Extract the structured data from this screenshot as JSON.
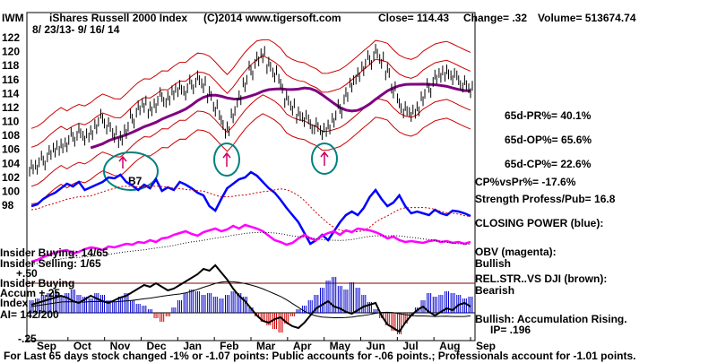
{
  "header": {
    "symbol": "IWM",
    "name": "iShares Russell 2000 Index",
    "copyright": "(C)2014 www.tigersoft.com",
    "close": "Close= 114.43",
    "change": "Change= .32",
    "volume": "Volume= 513674.74",
    "date_range": "8/ 23/13- 9/ 16/ 14"
  },
  "indicators": {
    "pr": "65d-PR%= 40.1%",
    "op": "65d-OP%= 65.6%",
    "cp": "65d-CP%= 22.6%",
    "cpvspr": "CP%vsPr%= -17.6%",
    "strength": "Strength Profess/Pub= 16.8",
    "closing_power": "CLOSING POWER (blue):",
    "obv": "OBV (magenta):",
    "obv_state": "Bullish",
    "relstr": "REL.STR..VS DJI (brown):",
    "relstr_state": "Bearish",
    "accum": "Bullish: Accumulation Rising.",
    "ip": "IP=  .196"
  },
  "left_labels": {
    "insider_buying": "Insider Buying: 14/65",
    "insider_selling": "Insider Selling: 1/65",
    "plus50": "+.50",
    "insider_buying2": "Insider Buying",
    "accum": "Accum  +.25",
    "index": "Index",
    "ai": "AI= 142/200",
    "minus25": "-.25",
    "b7": "B7"
  },
  "footer": "For Last 65 days stock changed -1% or -1.07 points:  Public accounts for -.06 points.;  Professionals account for -1.01 points.",
  "colors": {
    "price": "#000000",
    "ma": "#800080",
    "bands": "#cc0000",
    "closing_power": "#0000ff",
    "obv": "#ff00ff",
    "relstr": "#000000",
    "accum_pos": "#0000cc",
    "accum_neg": "#cc0000",
    "circles": "#008080"
  },
  "chart_data": {
    "type": "line",
    "title": "iShares Russell 2000 Index",
    "x_ticks": [
      "Sep",
      "Oct",
      "Nov",
      "Dec",
      "Jan",
      "Feb",
      "Mar",
      "Apr",
      "May",
      "Jun",
      "Jul",
      "Aug",
      "Sep"
    ],
    "ylim": [
      98,
      122
    ],
    "y_ticks": [
      98,
      100,
      102,
      104,
      106,
      108,
      110,
      112,
      114,
      116,
      118,
      120,
      122
    ],
    "price": [
      103.5,
      103.8,
      104.4,
      105.2,
      105.9,
      106.5,
      107.0,
      107.8,
      108.3,
      107.6,
      108.4,
      109.6,
      110.4,
      109.2,
      108.0,
      107.6,
      108.9,
      110.4,
      111.6,
      112.3,
      111.8,
      112.6,
      113.5,
      113.0,
      114.1,
      114.9,
      114.4,
      115.3,
      115.9,
      115.1,
      114.0,
      112.1,
      110.2,
      108.6,
      110.8,
      113.4,
      115.6,
      117.3,
      118.6,
      119.4,
      118.2,
      117.0,
      115.4,
      113.0,
      111.9,
      111.1,
      110.6,
      109.6,
      109.2,
      108.4,
      109.2,
      110.5,
      111.8,
      113.5,
      115.2,
      116.7,
      117.9,
      118.8,
      119.7,
      118.6,
      117.3,
      114.7,
      112.6,
      111.5,
      111.0,
      111.8,
      113.6,
      114.8,
      116.0,
      116.6,
      117.1,
      116.6,
      115.9,
      115.2,
      114.4
    ],
    "series": [
      {
        "name": "CLOSING POWER (blue)"
      },
      {
        "name": "OBV (magenta)"
      },
      {
        "name": "REL.STR..VS DJI (brown)"
      }
    ]
  }
}
